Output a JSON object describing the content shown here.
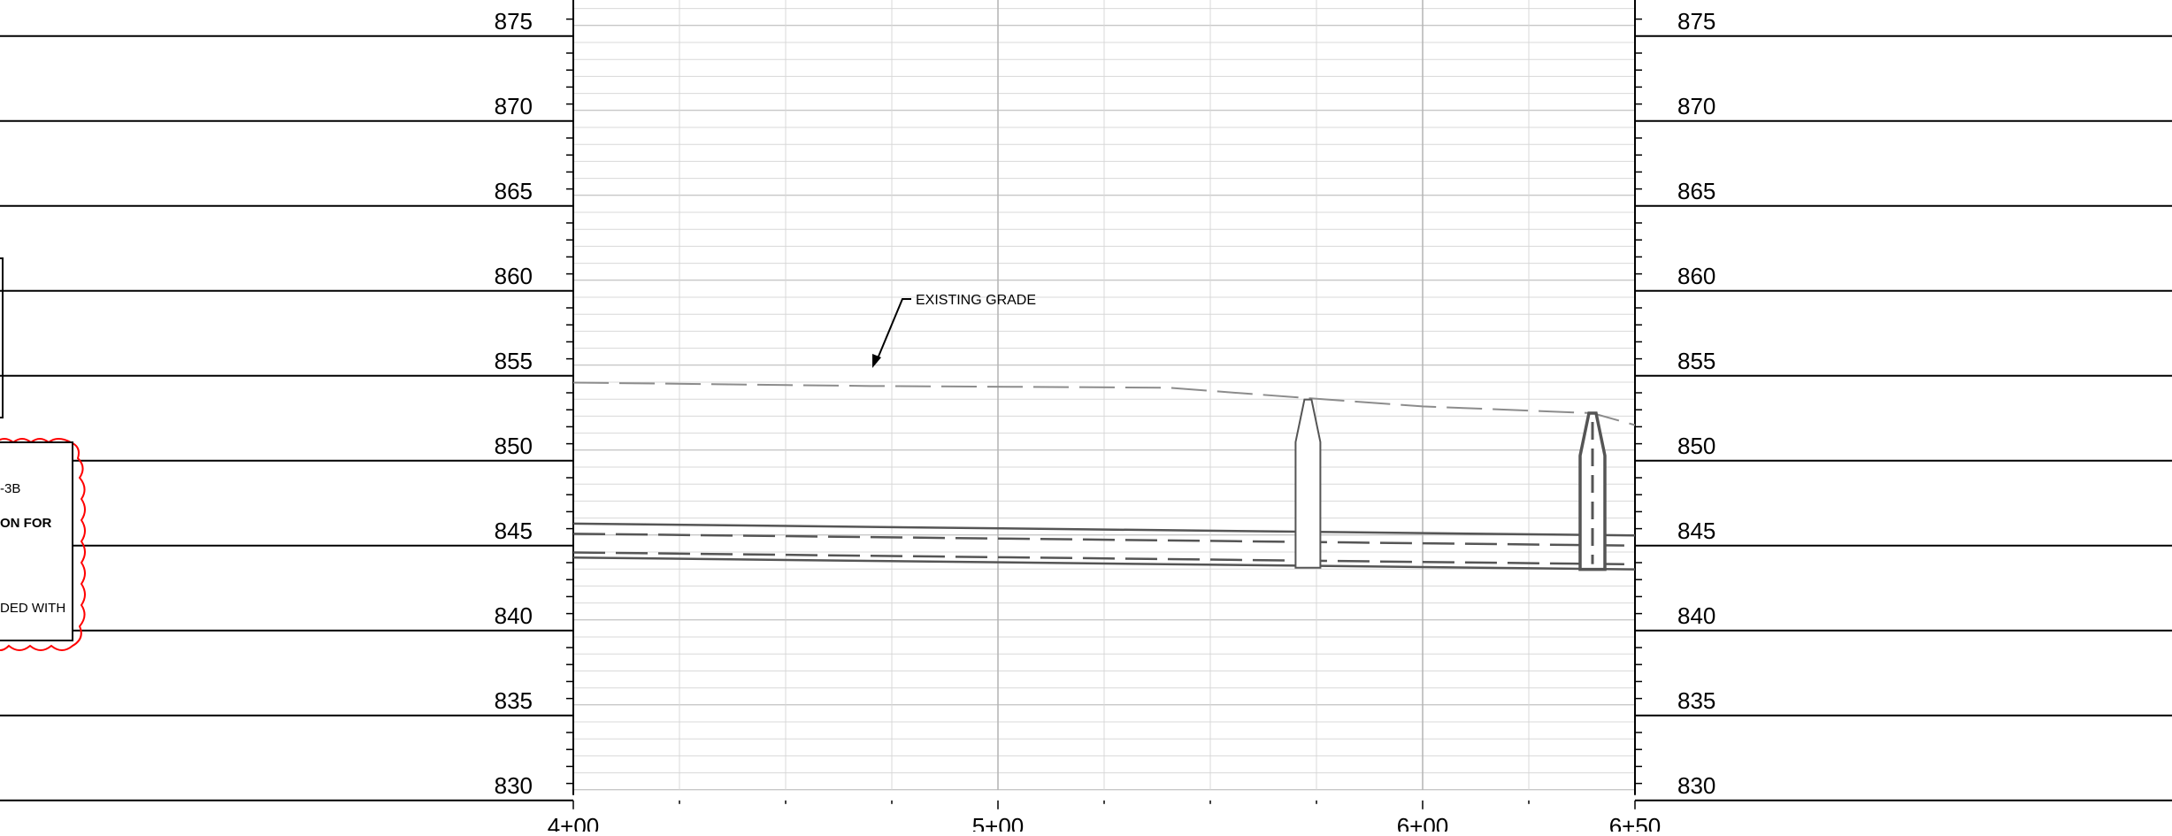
{
  "profile": {
    "elevation_labels": [
      "875",
      "870",
      "865",
      "860",
      "855",
      "850",
      "845",
      "840",
      "835",
      "830"
    ],
    "elevations": [
      875,
      870,
      865,
      860,
      855,
      850,
      845,
      840,
      835,
      830
    ],
    "station_labels": [
      "4+00",
      "5+00",
      "6+00",
      "6+50"
    ],
    "stations": [
      400,
      500,
      600,
      650
    ],
    "existing_grade_label": "EXISTING GRADE",
    "existing_grade": [
      [
        400,
        854.6
      ],
      [
        470,
        854.4
      ],
      [
        540,
        854.3
      ],
      [
        572,
        853.7
      ],
      [
        600,
        853.2
      ],
      [
        640,
        852.8
      ],
      [
        650,
        852.1
      ]
    ],
    "pipe": {
      "crown_start": 846.3,
      "crown_end": 845.6,
      "dash_top_start": 845.7,
      "dash_top_end": 845.0,
      "dash_bot_start": 844.6,
      "dash_bot_end": 843.9,
      "invert_start": 844.3,
      "invert_end": 843.6
    },
    "structures": [
      {
        "station": 573,
        "rim": 853.6,
        "bottom": 843.7
      },
      {
        "station": 640,
        "rim": 852.8,
        "bottom": 843.6
      }
    ]
  },
  "notes": {
    "line1": "-3B",
    "line2": "ON FOR",
    "line3": "DED WITH"
  },
  "colors": {
    "grid_major": "#b4b4b4",
    "grid_minor": "#d8d8d8",
    "revision_cloud": "#ff0000",
    "pipe": "#555555",
    "grade": "#8c8c8c"
  }
}
